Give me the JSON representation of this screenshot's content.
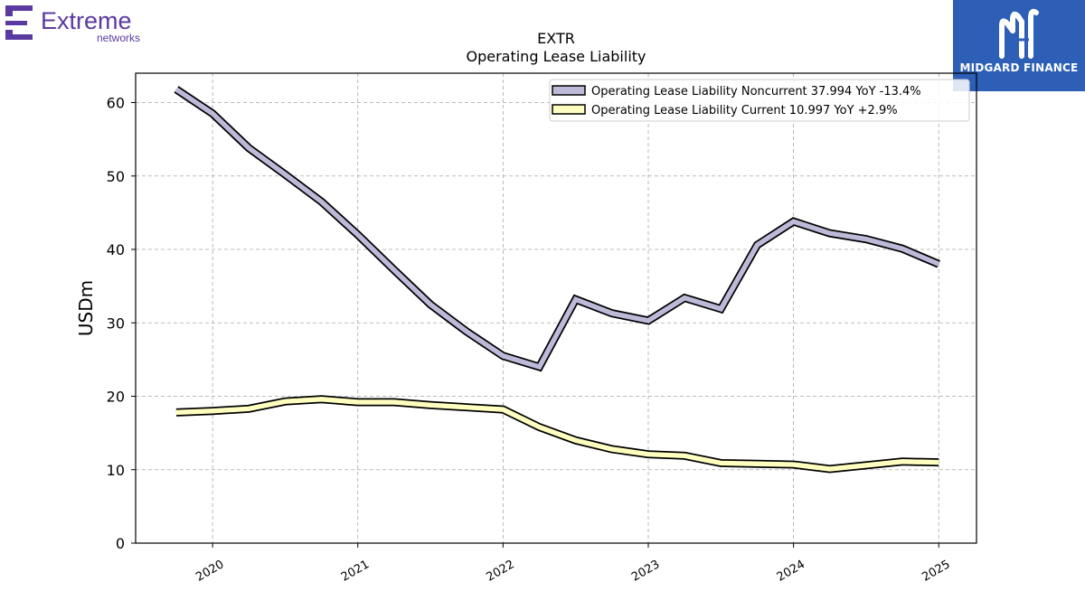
{
  "logo_left": {
    "wordmark": "Extreme",
    "subtext": "networks",
    "color": "#5a3aa0",
    "icon": "extreme-e-icon"
  },
  "brand_right": {
    "name": "MIDGARD FINANCE",
    "icon": "midgard-m-icon",
    "background": "#2d5fb6"
  },
  "chart_data": {
    "type": "line",
    "title": "EXTR",
    "subtitle": "Operating Lease Liability",
    "ylabel": "USDm",
    "xlabel": "",
    "ylim": [
      0,
      64
    ],
    "yticks": [
      0,
      10,
      20,
      30,
      40,
      50,
      60
    ],
    "xlim": [
      2019.47,
      2025.26
    ],
    "xticks": [
      {
        "value": 2020,
        "label": "2020"
      },
      {
        "value": 2021,
        "label": "2021"
      },
      {
        "value": 2022,
        "label": "2022"
      },
      {
        "value": 2023,
        "label": "2023"
      },
      {
        "value": 2024,
        "label": "2024"
      },
      {
        "value": 2025,
        "label": "2025"
      }
    ],
    "grid": true,
    "legend_position": "top-right",
    "series": [
      {
        "name": "Operating Lease Liability Noncurrent",
        "legend_label": "Operating Lease Liability Noncurrent  37.994 YoY -13.4%",
        "color": "#bcbad8",
        "x": [
          2019.75,
          2020.0,
          2020.25,
          2020.5,
          2020.75,
          2021.0,
          2021.25,
          2021.5,
          2021.75,
          2022.0,
          2022.25,
          2022.5,
          2022.75,
          2023.0,
          2023.25,
          2023.5,
          2023.75,
          2024.0,
          2024.25,
          2024.5,
          2024.75,
          2025.0
        ],
        "values": [
          61.8,
          58.5,
          53.8,
          50.2,
          46.5,
          42.0,
          37.2,
          32.5,
          28.8,
          25.5,
          24.0,
          33.2,
          31.3,
          30.3,
          33.4,
          31.9,
          40.6,
          43.8,
          42.2,
          41.4,
          40.1,
          38.0
        ]
      },
      {
        "name": "Operating Lease Liability Current",
        "legend_label": "Operating Lease Liability Current  10.997 YoY +2.9%",
        "color": "#ffffc0",
        "x": [
          2019.75,
          2020.0,
          2020.25,
          2020.5,
          2020.75,
          2021.0,
          2021.25,
          2021.5,
          2021.75,
          2022.0,
          2022.25,
          2022.5,
          2022.75,
          2023.0,
          2023.25,
          2023.5,
          2023.75,
          2024.0,
          2024.25,
          2024.5,
          2024.75,
          2025.0
        ],
        "values": [
          17.8,
          18.0,
          18.3,
          19.3,
          19.6,
          19.2,
          19.2,
          18.8,
          18.5,
          18.2,
          15.8,
          14.0,
          12.8,
          12.1,
          11.9,
          10.9,
          10.8,
          10.7,
          10.1,
          10.6,
          11.1,
          11.0
        ]
      }
    ]
  }
}
